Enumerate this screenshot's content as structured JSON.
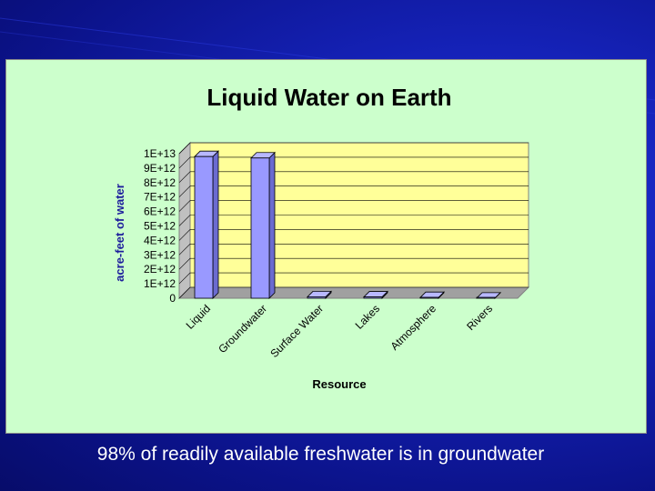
{
  "slide": {
    "caption": "98% of readily available freshwater is in groundwater"
  },
  "colors": {
    "background": "#1522b8",
    "chart_area": "#ccffcc",
    "plot_area": "#ffff99",
    "bar": "#9999ff"
  },
  "chart_data": {
    "type": "bar",
    "title": "Liquid Water on Earth",
    "xlabel": "Resource",
    "ylabel": "acre-feet of water",
    "categories": [
      "Liquid",
      "Groundwater",
      "Surface Water",
      "Lakes",
      "Atmosphere",
      "Rivers"
    ],
    "values": [
      9800000000000.0,
      9700000000000.0,
      100000000000.0,
      90000000000.0,
      50000000000.0,
      10000000000.0
    ],
    "ylim": [
      0,
      10000000000000.0
    ],
    "yticks": [
      0,
      1000000000000.0,
      2000000000000.0,
      3000000000000.0,
      4000000000000.0,
      5000000000000.0,
      6000000000000.0,
      7000000000000.0,
      8000000000000.0,
      9000000000000.0,
      10000000000000.0
    ],
    "ytick_labels": [
      "0",
      "1E+12",
      "2E+12",
      "3E+12",
      "4E+12",
      "5E+12",
      "6E+12",
      "7E+12",
      "8E+12",
      "9E+12",
      "1E+13"
    ],
    "grid": true,
    "legend": "none",
    "style": "3d"
  }
}
